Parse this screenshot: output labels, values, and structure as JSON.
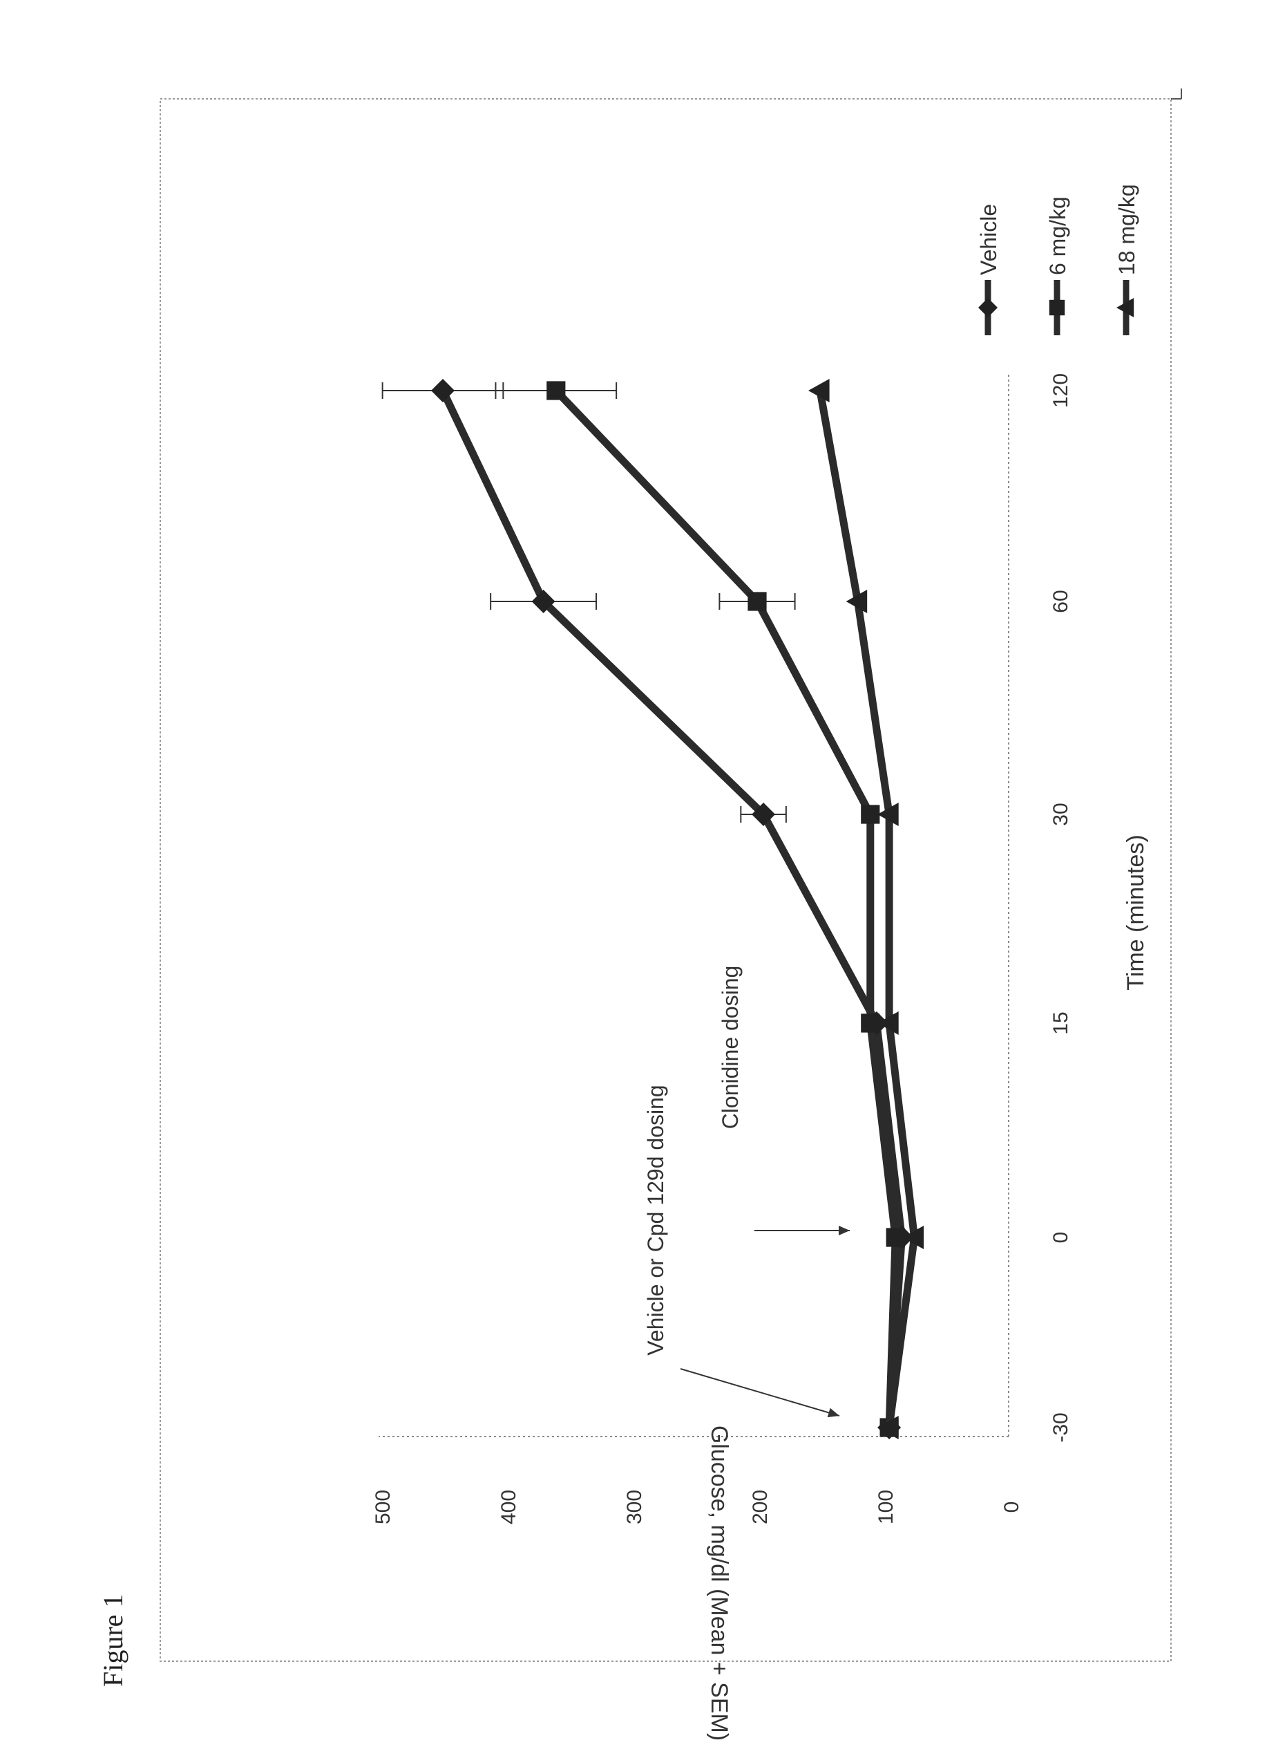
{
  "figure_label": "Figure 1",
  "chart_data": {
    "type": "line",
    "title": "",
    "orientation": "rotated 90° counter-clockwise on the page",
    "xlabel": "Time (minutes)",
    "ylabel": "Glucose, mg/dl  (Mean + SEM)",
    "categories": [
      "-30",
      "0",
      "15",
      "30",
      "60",
      "120"
    ],
    "ylim": [
      0,
      500
    ],
    "yticks": [
      0,
      100,
      200,
      300,
      400,
      500
    ],
    "grid": false,
    "legend_position": "right",
    "series": [
      {
        "name": "Vehicle",
        "marker": "diamond",
        "color": "#2b2b2b",
        "values": [
          95,
          85,
          105,
          195,
          370,
          450
        ],
        "sem": [
          5,
          5,
          8,
          18,
          42,
          48
        ]
      },
      {
        "name": "6 mg/kg",
        "marker": "square",
        "color": "#2b2b2b",
        "values": [
          95,
          90,
          110,
          110,
          200,
          360
        ],
        "sem": [
          5,
          5,
          6,
          6,
          30,
          48
        ]
      },
      {
        "name": "18 mg/kg",
        "marker": "triangle",
        "color": "#2b2b2b",
        "values": [
          95,
          75,
          95,
          95,
          120,
          150
        ],
        "sem": [
          5,
          6,
          5,
          6,
          8,
          8
        ]
      }
    ],
    "annotations": [
      {
        "text": "Vehicle or Cpd 129d dosing",
        "category": "-30"
      },
      {
        "text": "Clonidine dosing",
        "category": "0"
      }
    ]
  }
}
